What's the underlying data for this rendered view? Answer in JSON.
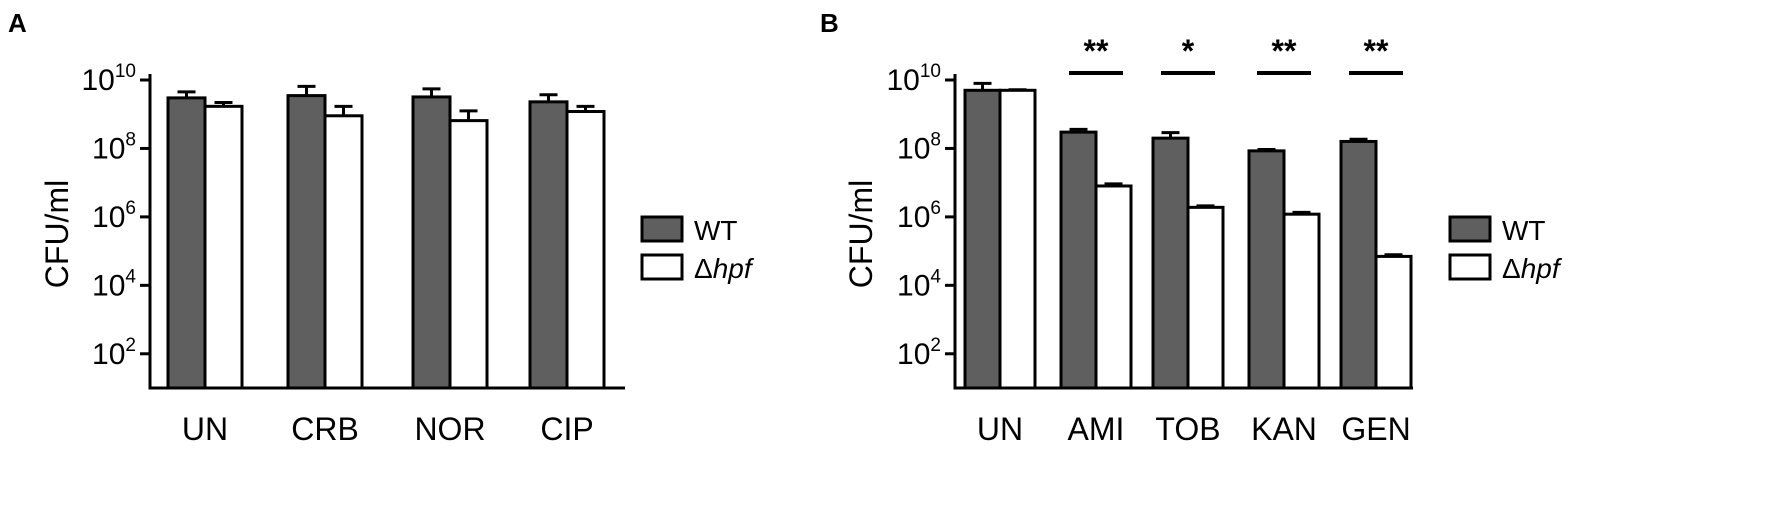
{
  "colors": {
    "wt": "#5f5f5f",
    "hpf": "#ffffff",
    "stroke": "#000000"
  },
  "chart_data": [
    {
      "panel_label": "A",
      "type": "bar",
      "ylabel": "CFU/ml",
      "yscale": "log",
      "ylim_exponents": [
        1,
        10
      ],
      "yticks": [
        {
          "base": "10",
          "exp": "10"
        },
        {
          "base": "10",
          "exp": "8"
        },
        {
          "base": "10",
          "exp": "6"
        },
        {
          "base": "10",
          "exp": "4"
        },
        {
          "base": "10",
          "exp": "2"
        }
      ],
      "categories": [
        "UN",
        "CRB",
        "NOR",
        "CIP"
      ],
      "series": [
        {
          "name": "WT",
          "values": [
            3000000000.0,
            3500000000.0,
            3200000000.0,
            2300000000.0
          ],
          "errors": [
            1500000000.0,
            3000000000.0,
            2300000000.0,
            1400000000.0
          ]
        },
        {
          "name": "Δhpf",
          "values": [
            1700000000.0,
            900000000.0,
            650000000.0,
            1200000000.0
          ],
          "errors": [
            500000000.0,
            800000000.0,
            600000000.0,
            500000000.0
          ]
        }
      ],
      "legend": {
        "position": "right",
        "items": [
          {
            "label_prefix": "Δ",
            "label_italic": "hpf"
          }
        ]
      },
      "significance": []
    },
    {
      "panel_label": "B",
      "type": "bar",
      "ylabel": "CFU/ml",
      "yscale": "log",
      "ylim_exponents": [
        1,
        10
      ],
      "yticks": [
        {
          "base": "10",
          "exp": "10"
        },
        {
          "base": "10",
          "exp": "8"
        },
        {
          "base": "10",
          "exp": "6"
        },
        {
          "base": "10",
          "exp": "4"
        },
        {
          "base": "10",
          "exp": "2"
        }
      ],
      "categories": [
        "UN",
        "AMI",
        "TOB",
        "KAN",
        "GEN"
      ],
      "series": [
        {
          "name": "WT",
          "values": [
            5000000000.0,
            300000000.0,
            200000000.0,
            85000000.0,
            160000000.0
          ],
          "errors": [
            3000000000.0,
            60000000.0,
            90000000.0,
            8000000.0,
            25000000.0
          ]
        },
        {
          "name": "Δhpf",
          "values": [
            5000000000.0,
            8000000.0,
            1900000.0,
            1200000.0,
            70000.0
          ],
          "errors": [
            200000000.0,
            1200000.0,
            200000.0,
            150000.0,
            8000.0
          ]
        }
      ],
      "legend": {
        "position": "right",
        "items": [
          {
            "label_prefix": "Δ",
            "label_italic": "hpf"
          }
        ]
      },
      "significance": [
        {
          "category": "AMI",
          "label": "**"
        },
        {
          "category": "TOB",
          "label": "*"
        },
        {
          "category": "KAN",
          "label": "**"
        },
        {
          "category": "GEN",
          "label": "**"
        }
      ]
    }
  ]
}
